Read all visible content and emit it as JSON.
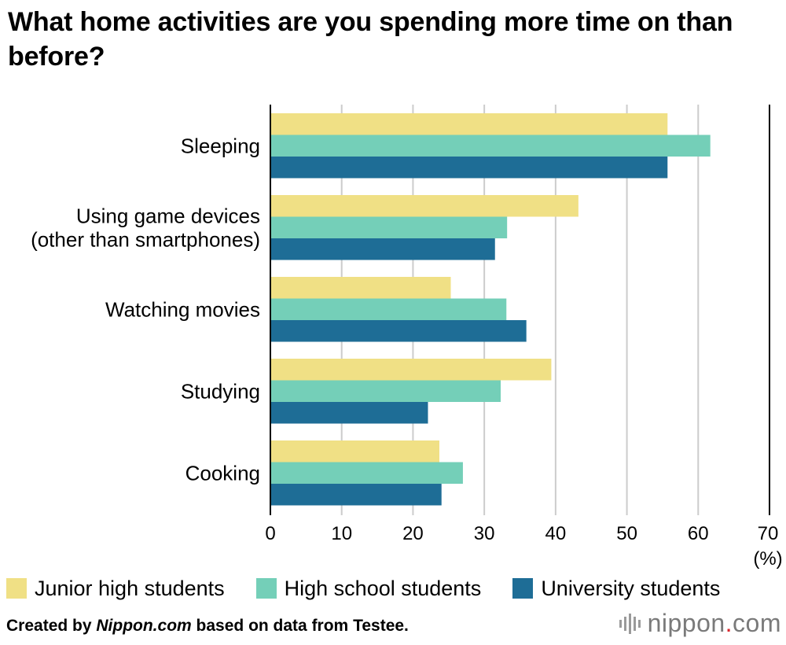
{
  "title": "What home activities are you spending more time on than before?",
  "footer": {
    "prefix": "Created by ",
    "source_italic": "Nippon.com",
    "suffix": " based on data from Testee."
  },
  "logo": {
    "name": "nippon",
    "dot": ".",
    "tld": "com",
    "icon": "sound-bars-icon"
  },
  "colors": {
    "junior": "#f0e085",
    "high": "#74cfb8",
    "university": "#1e6d96",
    "grid": "#cccccc",
    "axis": "#000000"
  },
  "chart_data": {
    "type": "bar",
    "orientation": "horizontal",
    "title": "What home activities are you spending more time on than before?",
    "xlabel": "(%)",
    "xlim": [
      0,
      70
    ],
    "xticks": [
      "0",
      "10",
      "20",
      "30",
      "40",
      "50",
      "60",
      "70"
    ],
    "grid": true,
    "legend_position": "bottom",
    "categories": [
      [
        "Sleeping"
      ],
      [
        "Using game devices",
        "(other than smartphones)"
      ],
      [
        "Watching movies"
      ],
      [
        "Studying"
      ],
      [
        "Cooking"
      ]
    ],
    "series": [
      {
        "name": "Junior high students",
        "color": "#f0e085",
        "values": [
          55.7,
          43.2,
          25.3,
          39.4,
          23.7
        ]
      },
      {
        "name": "High school students",
        "color": "#74cfb8",
        "values": [
          61.7,
          33.2,
          33.1,
          32.3,
          27.0
        ]
      },
      {
        "name": "University students",
        "color": "#1e6d96",
        "values": [
          55.7,
          31.5,
          35.9,
          22.1,
          24.0
        ]
      }
    ]
  }
}
